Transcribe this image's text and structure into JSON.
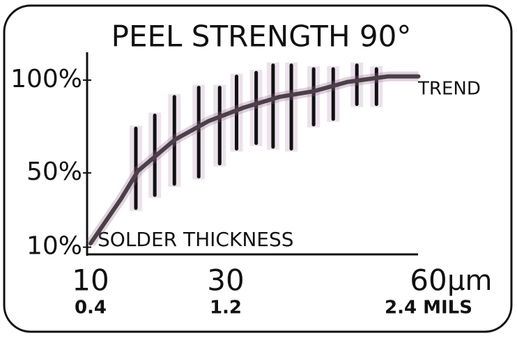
{
  "chart_data": {
    "type": "line",
    "title": "PEEL STRENGTH 90°",
    "x_label": "SOLDER THICKNESS",
    "x_unit": "μm",
    "xlim": [
      10,
      60
    ],
    "xticks": [
      10,
      30,
      60
    ],
    "x2ticks": [
      {
        "value": 10,
        "label": "0.4"
      },
      {
        "value": 30,
        "label": "1.2"
      },
      {
        "value": 60,
        "label": "2.4 MILS"
      }
    ],
    "ylim": [
      8,
      115
    ],
    "yticks": [
      {
        "value": 10,
        "label": "10%"
      },
      {
        "value": 50,
        "label": "50%"
      },
      {
        "value": 100,
        "label": "100%"
      }
    ],
    "x": [
      10,
      14.5,
      17,
      22.5,
      27.5,
      32.5,
      38,
      43,
      48,
      54,
      58.5
    ],
    "series": [
      {
        "name": "TREND",
        "color": "#4a4048",
        "values": [
          12,
          36,
          51,
          68,
          78,
          85,
          91,
          94,
          99,
          102,
          102
        ]
      }
    ],
    "ranges": {
      "color": "#111111",
      "x": [
        16.7,
        19.5,
        22.4,
        26,
        29.1,
        31.6,
        34.5,
        37,
        39.7,
        43,
        45.9,
        49.4,
        52.3
      ],
      "low": [
        31,
        38,
        44,
        48,
        55,
        63,
        66,
        64,
        63,
        76,
        79,
        87,
        87
      ],
      "high": [
        74,
        81,
        91,
        96,
        96,
        102,
        104,
        108,
        108,
        106,
        106,
        108,
        106
      ]
    }
  }
}
